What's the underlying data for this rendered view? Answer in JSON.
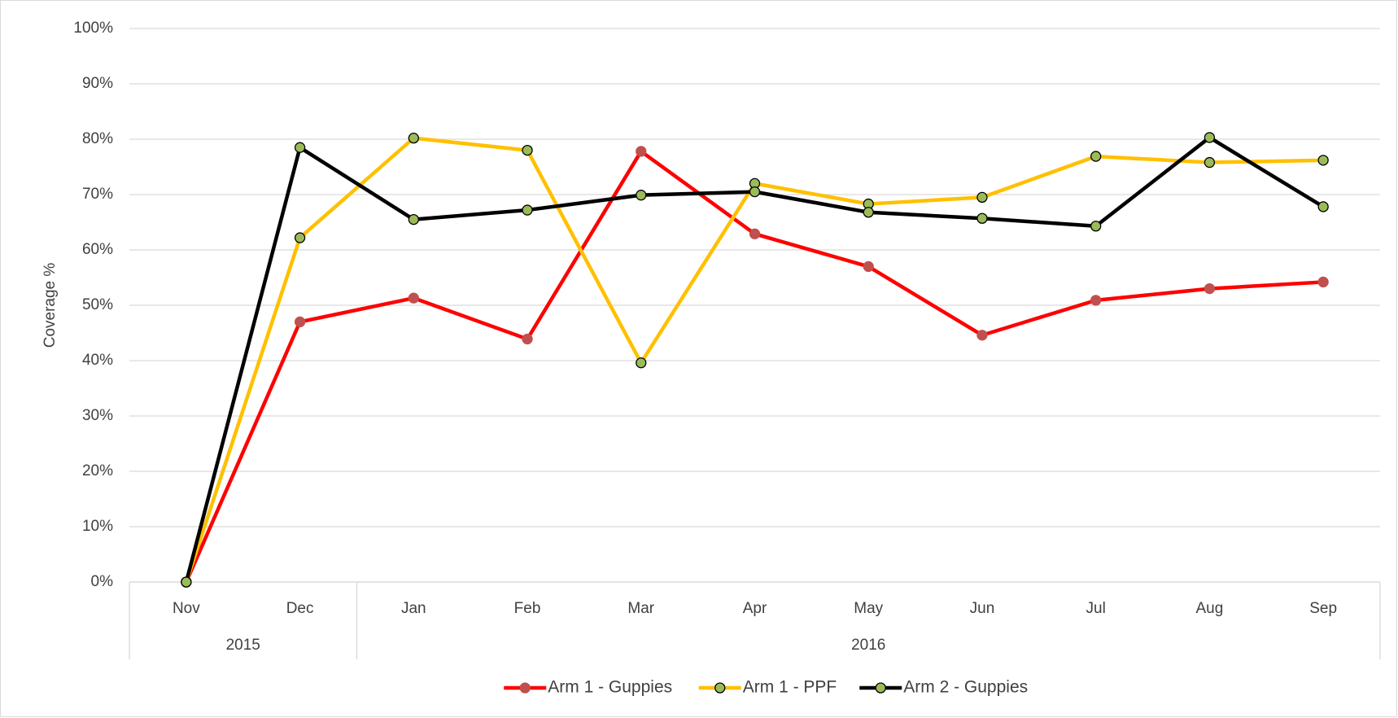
{
  "chart_data": {
    "type": "line",
    "y_label": "Coverage %",
    "categories": [
      "Nov",
      "Dec",
      "Jan",
      "Feb",
      "Mar",
      "Apr",
      "May",
      "Jun",
      "Jul",
      "Aug",
      "Sep"
    ],
    "category_groups": [
      {
        "label": "2015",
        "count": 2
      },
      {
        "label": "2016",
        "count": 9
      }
    ],
    "series": [
      {
        "name": "Arm 1 - Guppies",
        "color": "#ff0000",
        "marker_color": "#c0504d",
        "marker_edge": "#c0504d",
        "values": [
          0,
          47,
          51.3,
          43.9,
          77.8,
          62.9,
          57,
          44.6,
          50.9,
          53,
          54.2
        ]
      },
      {
        "name": "Arm 1 - PPF",
        "color": "#ffc000",
        "marker_color": "#9bbb59",
        "marker_edge": "#000000",
        "values": [
          0,
          62.2,
          80.2,
          78,
          39.6,
          72,
          68.3,
          69.5,
          76.9,
          75.8,
          76.2
        ]
      },
      {
        "name": "Arm 2 - Guppies",
        "color": "#000000",
        "marker_color": "#9bbb59",
        "marker_edge": "#000000",
        "values": [
          0,
          78.5,
          65.5,
          67.2,
          69.9,
          70.5,
          66.8,
          65.7,
          64.3,
          80.3,
          67.8
        ]
      }
    ],
    "ylim": [
      0,
      100
    ],
    "yticks": [
      {
        "value": 0,
        "label": "0%"
      },
      {
        "value": 10,
        "label": "10%"
      },
      {
        "value": 20,
        "label": "20%"
      },
      {
        "value": 30,
        "label": "30%"
      },
      {
        "value": 40,
        "label": "40%"
      },
      {
        "value": 50,
        "label": "50%"
      },
      {
        "value": 60,
        "label": "60%"
      },
      {
        "value": 70,
        "label": "70%"
      },
      {
        "value": 80,
        "label": "80%"
      },
      {
        "value": 90,
        "label": "90%"
      },
      {
        "value": 100,
        "label": "100%"
      }
    ],
    "grid": true,
    "legend": "bottom"
  }
}
